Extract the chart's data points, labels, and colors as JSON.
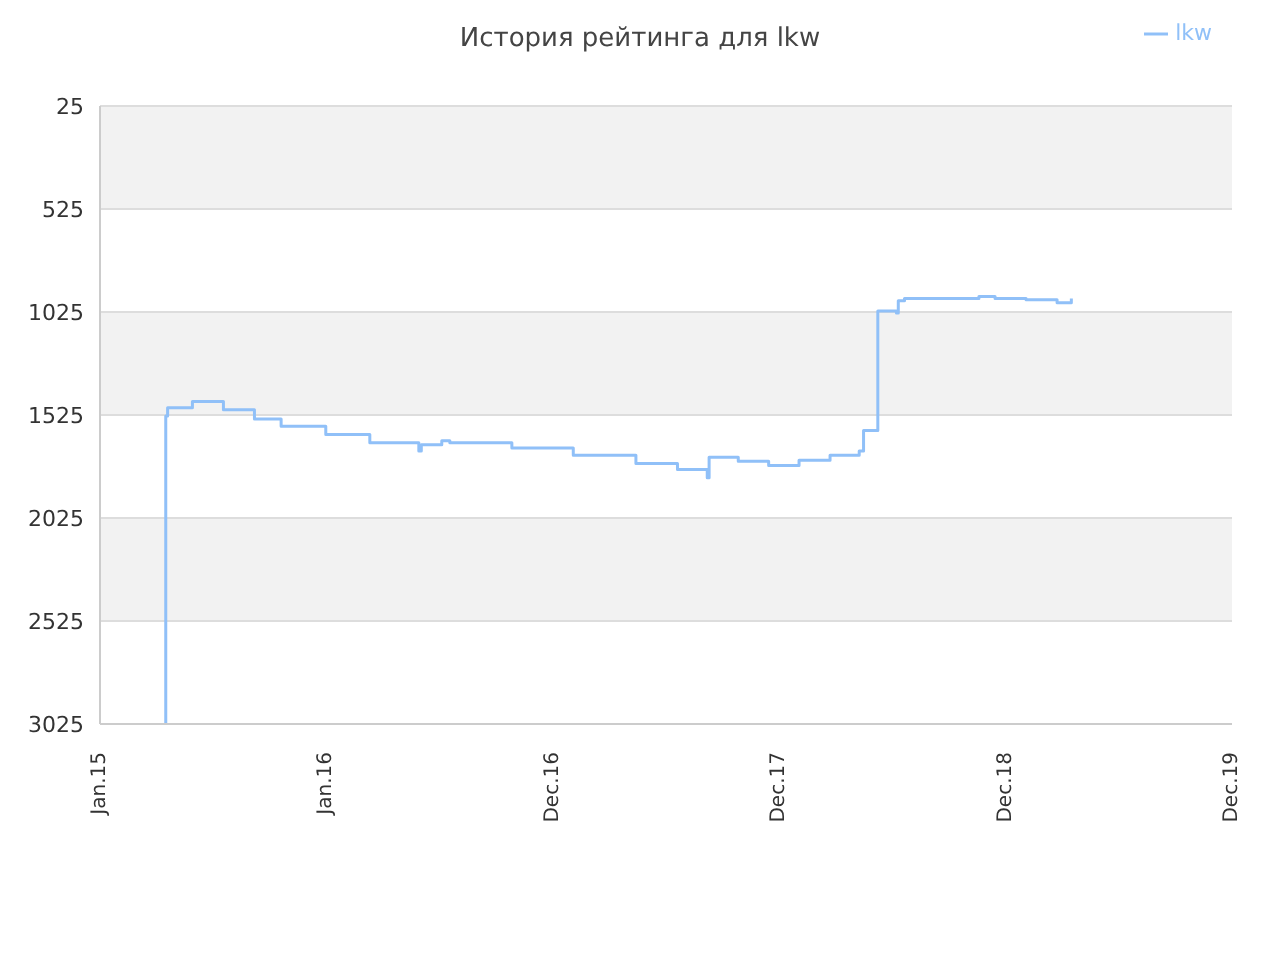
{
  "chart_data": {
    "type": "step",
    "title": "История рейтинга для lkw",
    "x": [
      "2015-04-16",
      "2015-04-17",
      "2015-04-20",
      "2015-05-30",
      "2015-07-19",
      "2015-09-07",
      "2015-10-20",
      "2015-12-31",
      "2016-03-11",
      "2016-05-29",
      "2016-06-02",
      "2016-07-05",
      "2016-07-18",
      "2016-10-26",
      "2017-02-02",
      "2017-05-14",
      "2017-07-20",
      "2017-09-06",
      "2017-09-09",
      "2017-10-26",
      "2017-12-14",
      "2018-02-01",
      "2018-03-23",
      "2018-05-09",
      "2018-05-16",
      "2018-06-05",
      "2018-06-08",
      "2018-07-08",
      "2018-07-11",
      "2018-07-21",
      "2018-11-18",
      "2018-12-14",
      "2019-02-02",
      "2019-03-24",
      "2019-04-14",
      "2019-04-16"
    ],
    "series": [
      {
        "name": "lkw",
        "color": "#90c0f8",
        "values": [
          3025,
          1530,
          1490,
          1460,
          1500,
          1545,
          1580,
          1620,
          1660,
          1700,
          1670,
          1650,
          1660,
          1685,
          1720,
          1760,
          1790,
          1830,
          1730,
          1750,
          1770,
          1745,
          1720,
          1700,
          1600,
          1600,
          1020,
          1030,
          970,
          960,
          950,
          960,
          965,
          980,
          980,
          960
        ]
      }
    ],
    "xlim": [
      "2015-01-01",
      "2019-12-31"
    ],
    "xticks": [
      {
        "value": "2015-01-01",
        "label": "Jan.15"
      },
      {
        "value": "2016-01-01",
        "label": "Jan.16"
      },
      {
        "value": "2016-12-31",
        "label": "Dec.16"
      },
      {
        "value": "2017-12-31",
        "label": "Dec.17"
      },
      {
        "value": "2018-12-31",
        "label": "Dec.18"
      },
      {
        "value": "2019-12-31",
        "label": "Dec.19"
      }
    ],
    "ylim": [
      3025,
      25
    ],
    "yticks": [
      25,
      525,
      1025,
      1525,
      2025,
      2525,
      3025
    ],
    "grid": "y",
    "legend": "top right",
    "marker": "none",
    "line_style": "solid"
  }
}
